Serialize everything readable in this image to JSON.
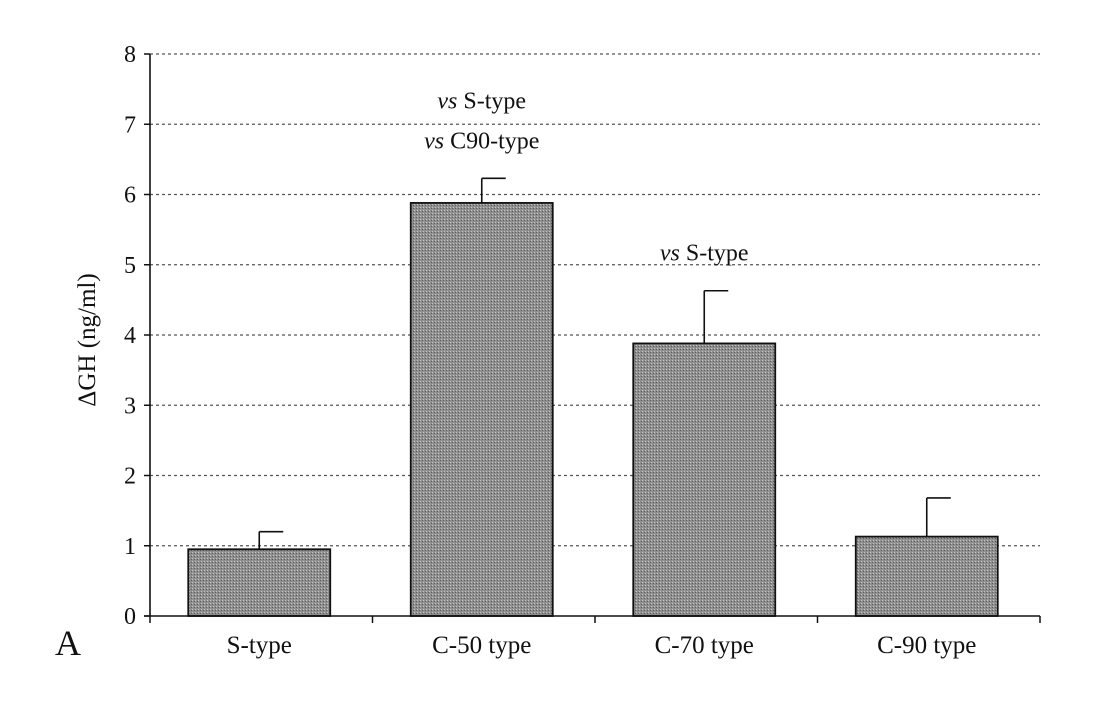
{
  "panel_label": "A",
  "chart_data": {
    "type": "bar",
    "categories": [
      "S-type",
      "C-50 type",
      "C-70 type",
      "C-90 type"
    ],
    "values": [
      0.95,
      5.88,
      3.88,
      1.13
    ],
    "errors": [
      0.25,
      0.35,
      0.75,
      0.55
    ],
    "ylabel": "ΔGH (ng/ml)",
    "xlabel": "",
    "ylim": [
      0,
      8
    ],
    "yticks": [
      0,
      1,
      2,
      3,
      4,
      5,
      6,
      7,
      8
    ],
    "grid": "horizontal dashed",
    "bar_color": "#9a9a9a",
    "annotations": [
      {
        "category": "C-50 type",
        "lines": [
          {
            "italic": "vs",
            "text": " S-type"
          },
          {
            "italic": "vs",
            "text": " C90-type"
          }
        ]
      },
      {
        "category": "C-70 type",
        "lines": [
          {
            "italic": "vs",
            "text": " S-type"
          }
        ]
      }
    ]
  }
}
